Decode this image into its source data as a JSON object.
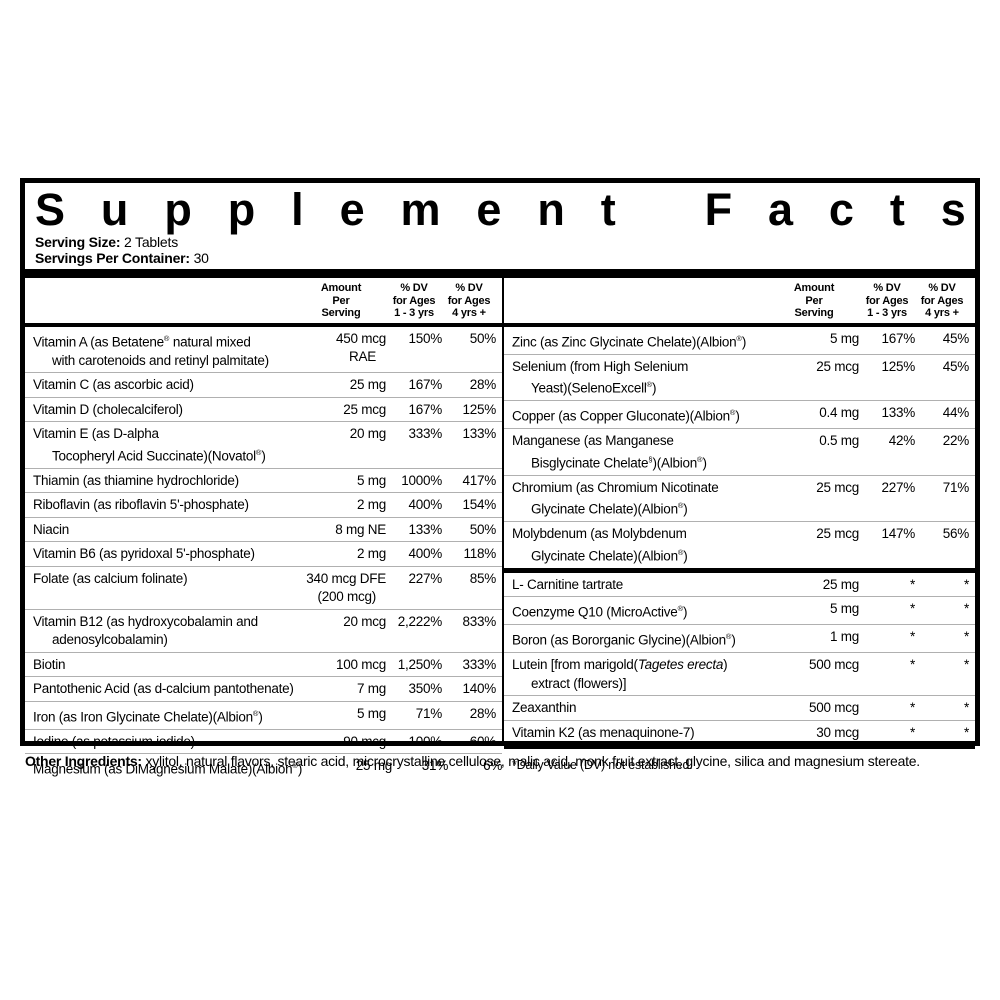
{
  "title": {
    "text": "Supplement Facts"
  },
  "serving": {
    "size_label": "Serving Size:",
    "size_value": " 2 Tablets",
    "container_label": "Servings Per Container:",
    "container_value": " 30"
  },
  "columns": {
    "amount": [
      "Amount",
      "Per",
      "Serving"
    ],
    "dv1": [
      "% DV",
      "for Ages",
      "1 - 3  yrs"
    ],
    "dv2": [
      "% DV",
      "for Ages",
      "4 yrs +"
    ]
  },
  "tables": {
    "left": [
      {
        "name_lines": [
          "Vitamin A (as Betatene® natural mixed",
          "with carotenoids and retinyl palmitate)"
        ],
        "amount_lines": [
          "450 mcg",
          "RAE"
        ],
        "dv_1_3": "150%",
        "dv_4plus": "50%"
      },
      {
        "name_lines": [
          "Vitamin C (as ascorbic acid)"
        ],
        "amount_lines": [
          "25 mg"
        ],
        "dv_1_3": "167%",
        "dv_4plus": "28%"
      },
      {
        "name_lines": [
          "Vitamin D (cholecalciferol)"
        ],
        "amount_lines": [
          "25 mcg"
        ],
        "dv_1_3": "167%",
        "dv_4plus": "125%"
      },
      {
        "name_lines": [
          "Vitamin E (as D-alpha",
          "Tocopheryl Acid Succinate)(Novatol®)"
        ],
        "amount_lines": [
          "20 mg"
        ],
        "dv_1_3": "333%",
        "dv_4plus": "133%"
      },
      {
        "name_lines": [
          "Thiamin (as thiamine hydrochloride)"
        ],
        "amount_lines": [
          "5 mg"
        ],
        "dv_1_3": "1000%",
        "dv_4plus": "417%"
      },
      {
        "name_lines": [
          "Riboflavin (as riboflavin 5'-phosphate)"
        ],
        "amount_lines": [
          "2 mg"
        ],
        "dv_1_3": "400%",
        "dv_4plus": "154%"
      },
      {
        "name_lines": [
          "Niacin"
        ],
        "amount_lines": [
          "8 mg NE"
        ],
        "dv_1_3": "133%",
        "dv_4plus": "50%"
      },
      {
        "name_lines": [
          "Vitamin B6 (as pyridoxal 5'-phosphate)"
        ],
        "amount_lines": [
          "2 mg"
        ],
        "dv_1_3": "400%",
        "dv_4plus": "118%"
      },
      {
        "name_lines": [
          "Folate (as calcium folinate)"
        ],
        "amount_lines": [
          "340 mcg DFE",
          "(200 mcg)"
        ],
        "dv_1_3": "227%",
        "dv_4plus": "85%"
      },
      {
        "name_lines": [
          "Vitamin B12 (as hydroxycobalamin and",
          "adenosylcobalamin)"
        ],
        "amount_lines": [
          "20 mcg"
        ],
        "dv_1_3": "2,222%",
        "dv_4plus": "833%"
      },
      {
        "name_lines": [
          "Biotin"
        ],
        "amount_lines": [
          "100 mcg"
        ],
        "dv_1_3": "1,250%",
        "dv_4plus": "333%"
      },
      {
        "name_lines": [
          "Pantothenic Acid (as d-calcium pantothenate)"
        ],
        "amount_lines": [
          "7 mg"
        ],
        "dv_1_3": "350%",
        "dv_4plus": "140%"
      },
      {
        "name_lines": [
          "Iron (as Iron Glycinate Chelate)(Albion®)"
        ],
        "amount_lines": [
          "5 mg"
        ],
        "dv_1_3": "71%",
        "dv_4plus": "28%"
      },
      {
        "name_lines": [
          "Iodine (as potassium iodide)"
        ],
        "amount_lines": [
          "90 mcg"
        ],
        "dv_1_3": "100%",
        "dv_4plus": "60%"
      },
      {
        "name_lines": [
          "Magnesium (as DiMagnesium Malate)(Albion®)"
        ],
        "amount_lines": [
          "25 mg"
        ],
        "dv_1_3": "31%",
        "dv_4plus": "6%"
      }
    ],
    "right_minerals": [
      {
        "name_lines": [
          "Zinc (as Zinc Glycinate Chelate)(Albion®)"
        ],
        "amount_lines": [
          "5 mg"
        ],
        "dv_1_3": "167%",
        "dv_4plus": "45%"
      },
      {
        "name_lines": [
          "Selenium (from High Selenium",
          "Yeast)(SelenoExcell®)"
        ],
        "amount_lines": [
          "25 mcg"
        ],
        "dv_1_3": "125%",
        "dv_4plus": "45%"
      },
      {
        "name_lines": [
          "Copper (as Copper Gluconate)(Albion®)"
        ],
        "amount_lines": [
          "0.4 mg"
        ],
        "dv_1_3": "133%",
        "dv_4plus": "44%"
      },
      {
        "name_lines": [
          "Manganese (as Manganese",
          "Bisglycinate Chelate§)(Albion®)"
        ],
        "amount_lines": [
          "0.5 mg"
        ],
        "dv_1_3": "42%",
        "dv_4plus": "22%"
      },
      {
        "name_lines": [
          "Chromium (as Chromium Nicotinate",
          "Glycinate Chelate)(Albion®)"
        ],
        "amount_lines": [
          "25 mcg"
        ],
        "dv_1_3": "227%",
        "dv_4plus": "71%"
      },
      {
        "name_lines": [
          "Molybdenum (as Molybdenum",
          "Glycinate Chelate)(Albion®)"
        ],
        "amount_lines": [
          "25 mcg"
        ],
        "dv_1_3": "147%",
        "dv_4plus": "56%"
      }
    ],
    "right_others": [
      {
        "name_lines": [
          "L- Carnitine tartrate"
        ],
        "amount_lines": [
          "25 mg"
        ],
        "dv_1_3": "*",
        "dv_4plus": "*"
      },
      {
        "name_lines": [
          "Coenzyme Q10 (MicroActive®)"
        ],
        "amount_lines": [
          "5 mg"
        ],
        "dv_1_3": "*",
        "dv_4plus": "*"
      },
      {
        "name_lines": [
          "Boron (as Bororganic Glycine)(Albion®)"
        ],
        "amount_lines": [
          "1 mg"
        ],
        "dv_1_3": "*",
        "dv_4plus": "*"
      },
      {
        "name_lines": [
          "Lutein [from marigold(_Tagetes erecta_)",
          "extract (flowers)]"
        ],
        "amount_lines": [
          "500 mcg"
        ],
        "dv_1_3": "*",
        "dv_4plus": "*"
      },
      {
        "name_lines": [
          "Zeaxanthin"
        ],
        "amount_lines": [
          "500 mcg"
        ],
        "dv_1_3": "*",
        "dv_4plus": "*"
      },
      {
        "name_lines": [
          "Vitamin K2 (as menaquinone-7)"
        ],
        "amount_lines": [
          "30 mcg"
        ],
        "dv_1_3": "*",
        "dv_4plus": "*"
      }
    ]
  },
  "footnote": {
    "text": "*Daily Value (DV) not established."
  },
  "other": {
    "label": "Other Ingredients:",
    "text": " xylitol, natural flavors, stearic acid, microcrystalline cellulose, malic acid, monk fruit extract, glycine, silica and magnesium stereate."
  }
}
